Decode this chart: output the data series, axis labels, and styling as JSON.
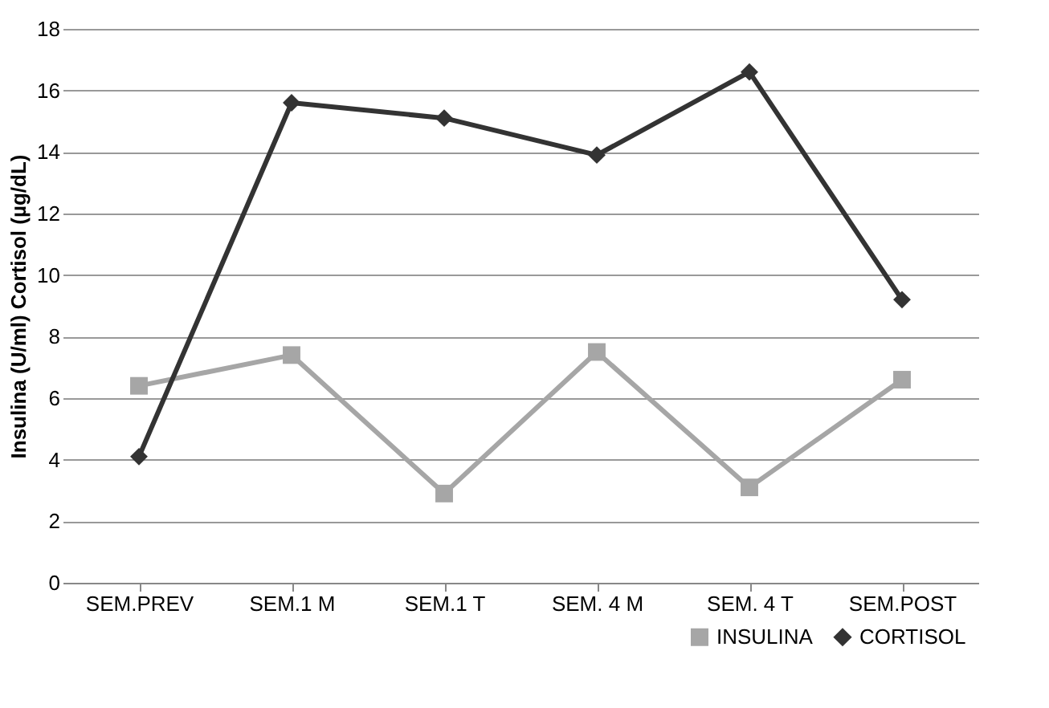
{
  "chart_data": {
    "type": "line",
    "ylabel": "Insulina (U/ml)  Cortisol (µg/dL)",
    "categories": [
      "SEM.PREV",
      "SEM.1 M",
      "SEM.1 T",
      "SEM. 4 M",
      "SEM. 4 T",
      "SEM.POST"
    ],
    "series": [
      {
        "name": "INSULINA",
        "color": "#a6a6a6",
        "marker": "square",
        "values": [
          6.4,
          7.4,
          2.9,
          7.5,
          3.1,
          6.6
        ]
      },
      {
        "name": "CORTISOL",
        "color": "#333333",
        "marker": "diamond",
        "values": [
          4.1,
          15.6,
          15.1,
          13.9,
          16.6,
          9.2
        ]
      }
    ],
    "ylim": [
      0,
      18
    ],
    "yticks": [
      0,
      2,
      4,
      6,
      8,
      10,
      12,
      14,
      16,
      18
    ],
    "grid": "y",
    "legend": "bottom right",
    "line_style": "solid"
  }
}
